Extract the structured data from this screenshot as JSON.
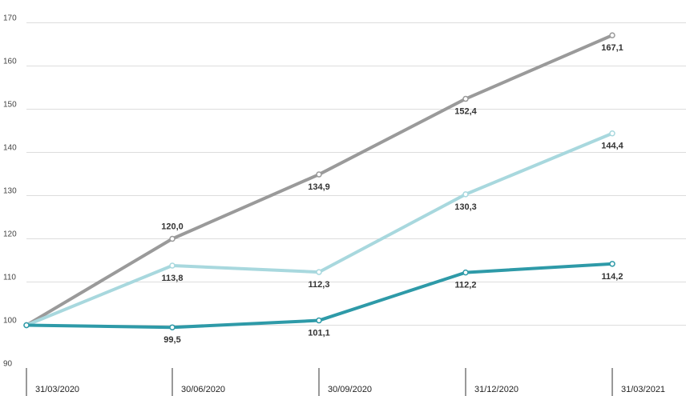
{
  "chart_data": {
    "type": "line",
    "x": [
      "31/03/2020",
      "30/06/2020",
      "30/09/2020",
      "31/12/2020",
      "31/03/2021"
    ],
    "ylim": [
      90,
      170
    ],
    "yticks": [
      90,
      100,
      110,
      120,
      130,
      140,
      150,
      160,
      170
    ],
    "grid": true,
    "legend": "none",
    "series": [
      {
        "color": "#9a9a9a",
        "values": [
          100,
          120.0,
          134.9,
          152.4,
          167.1
        ],
        "labels": [
          "",
          "120,0",
          "134,9",
          "152,4",
          "167,1"
        ],
        "label_pos": [
          "none",
          "above",
          "below",
          "below",
          "below"
        ]
      },
      {
        "color": "#a8d8de",
        "values": [
          100,
          113.8,
          112.3,
          130.3,
          144.4
        ],
        "labels": [
          "",
          "113,8",
          "112,3",
          "130,3",
          "144,4"
        ],
        "label_pos": [
          "none",
          "below",
          "below",
          "below",
          "below"
        ]
      },
      {
        "color": "#2e9aa8",
        "values": [
          100,
          99.5,
          101.1,
          112.2,
          114.2
        ],
        "labels": [
          "",
          "99,5",
          "101,1",
          "112,2",
          "114,2"
        ],
        "label_pos": [
          "none",
          "below",
          "below",
          "below",
          "below"
        ]
      }
    ]
  }
}
